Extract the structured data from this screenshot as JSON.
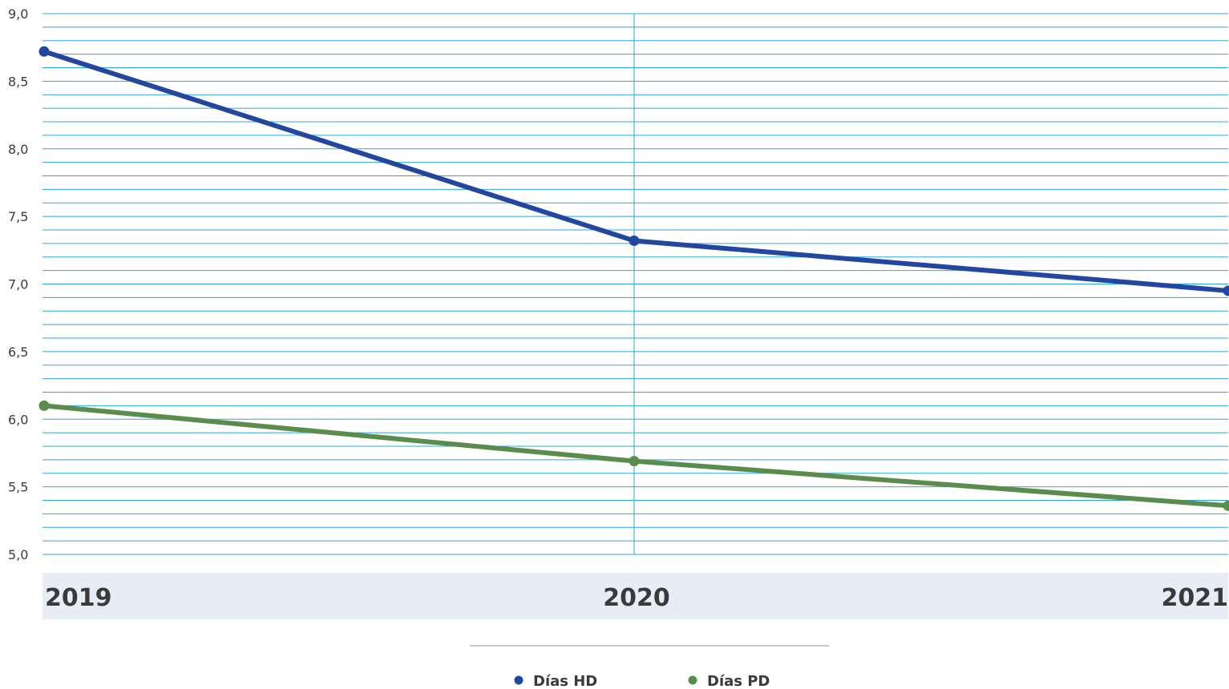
{
  "chart_data": {
    "type": "line",
    "x": [
      "2019",
      "2020",
      "2021"
    ],
    "categories": [
      "2019",
      "2020",
      "2021"
    ],
    "series": [
      {
        "name": "Días HD",
        "values": [
          8.72,
          7.32,
          6.95
        ],
        "color": "#2347a0"
      },
      {
        "name": "Días PD",
        "values": [
          6.1,
          5.69,
          5.36
        ],
        "color": "#5a8c4e"
      }
    ],
    "y_ticks": [
      "9,0",
      "8,5",
      "8,0",
      "7,5",
      "7,0",
      "6,5",
      "6,0",
      "5,5",
      "5,0"
    ],
    "y_tick_values": [
      9.0,
      8.5,
      8.0,
      7.5,
      7.0,
      6.5,
      6.0,
      5.5,
      5.0
    ],
    "ylim": [
      5.0,
      9.0
    ],
    "minor_grid_step": 0.1,
    "grid": true,
    "grid_color": "#29a8e0",
    "x_band_color": "#e7ecf5",
    "legend_position": "bottom-center",
    "title": "",
    "xlabel": "",
    "ylabel": ""
  }
}
